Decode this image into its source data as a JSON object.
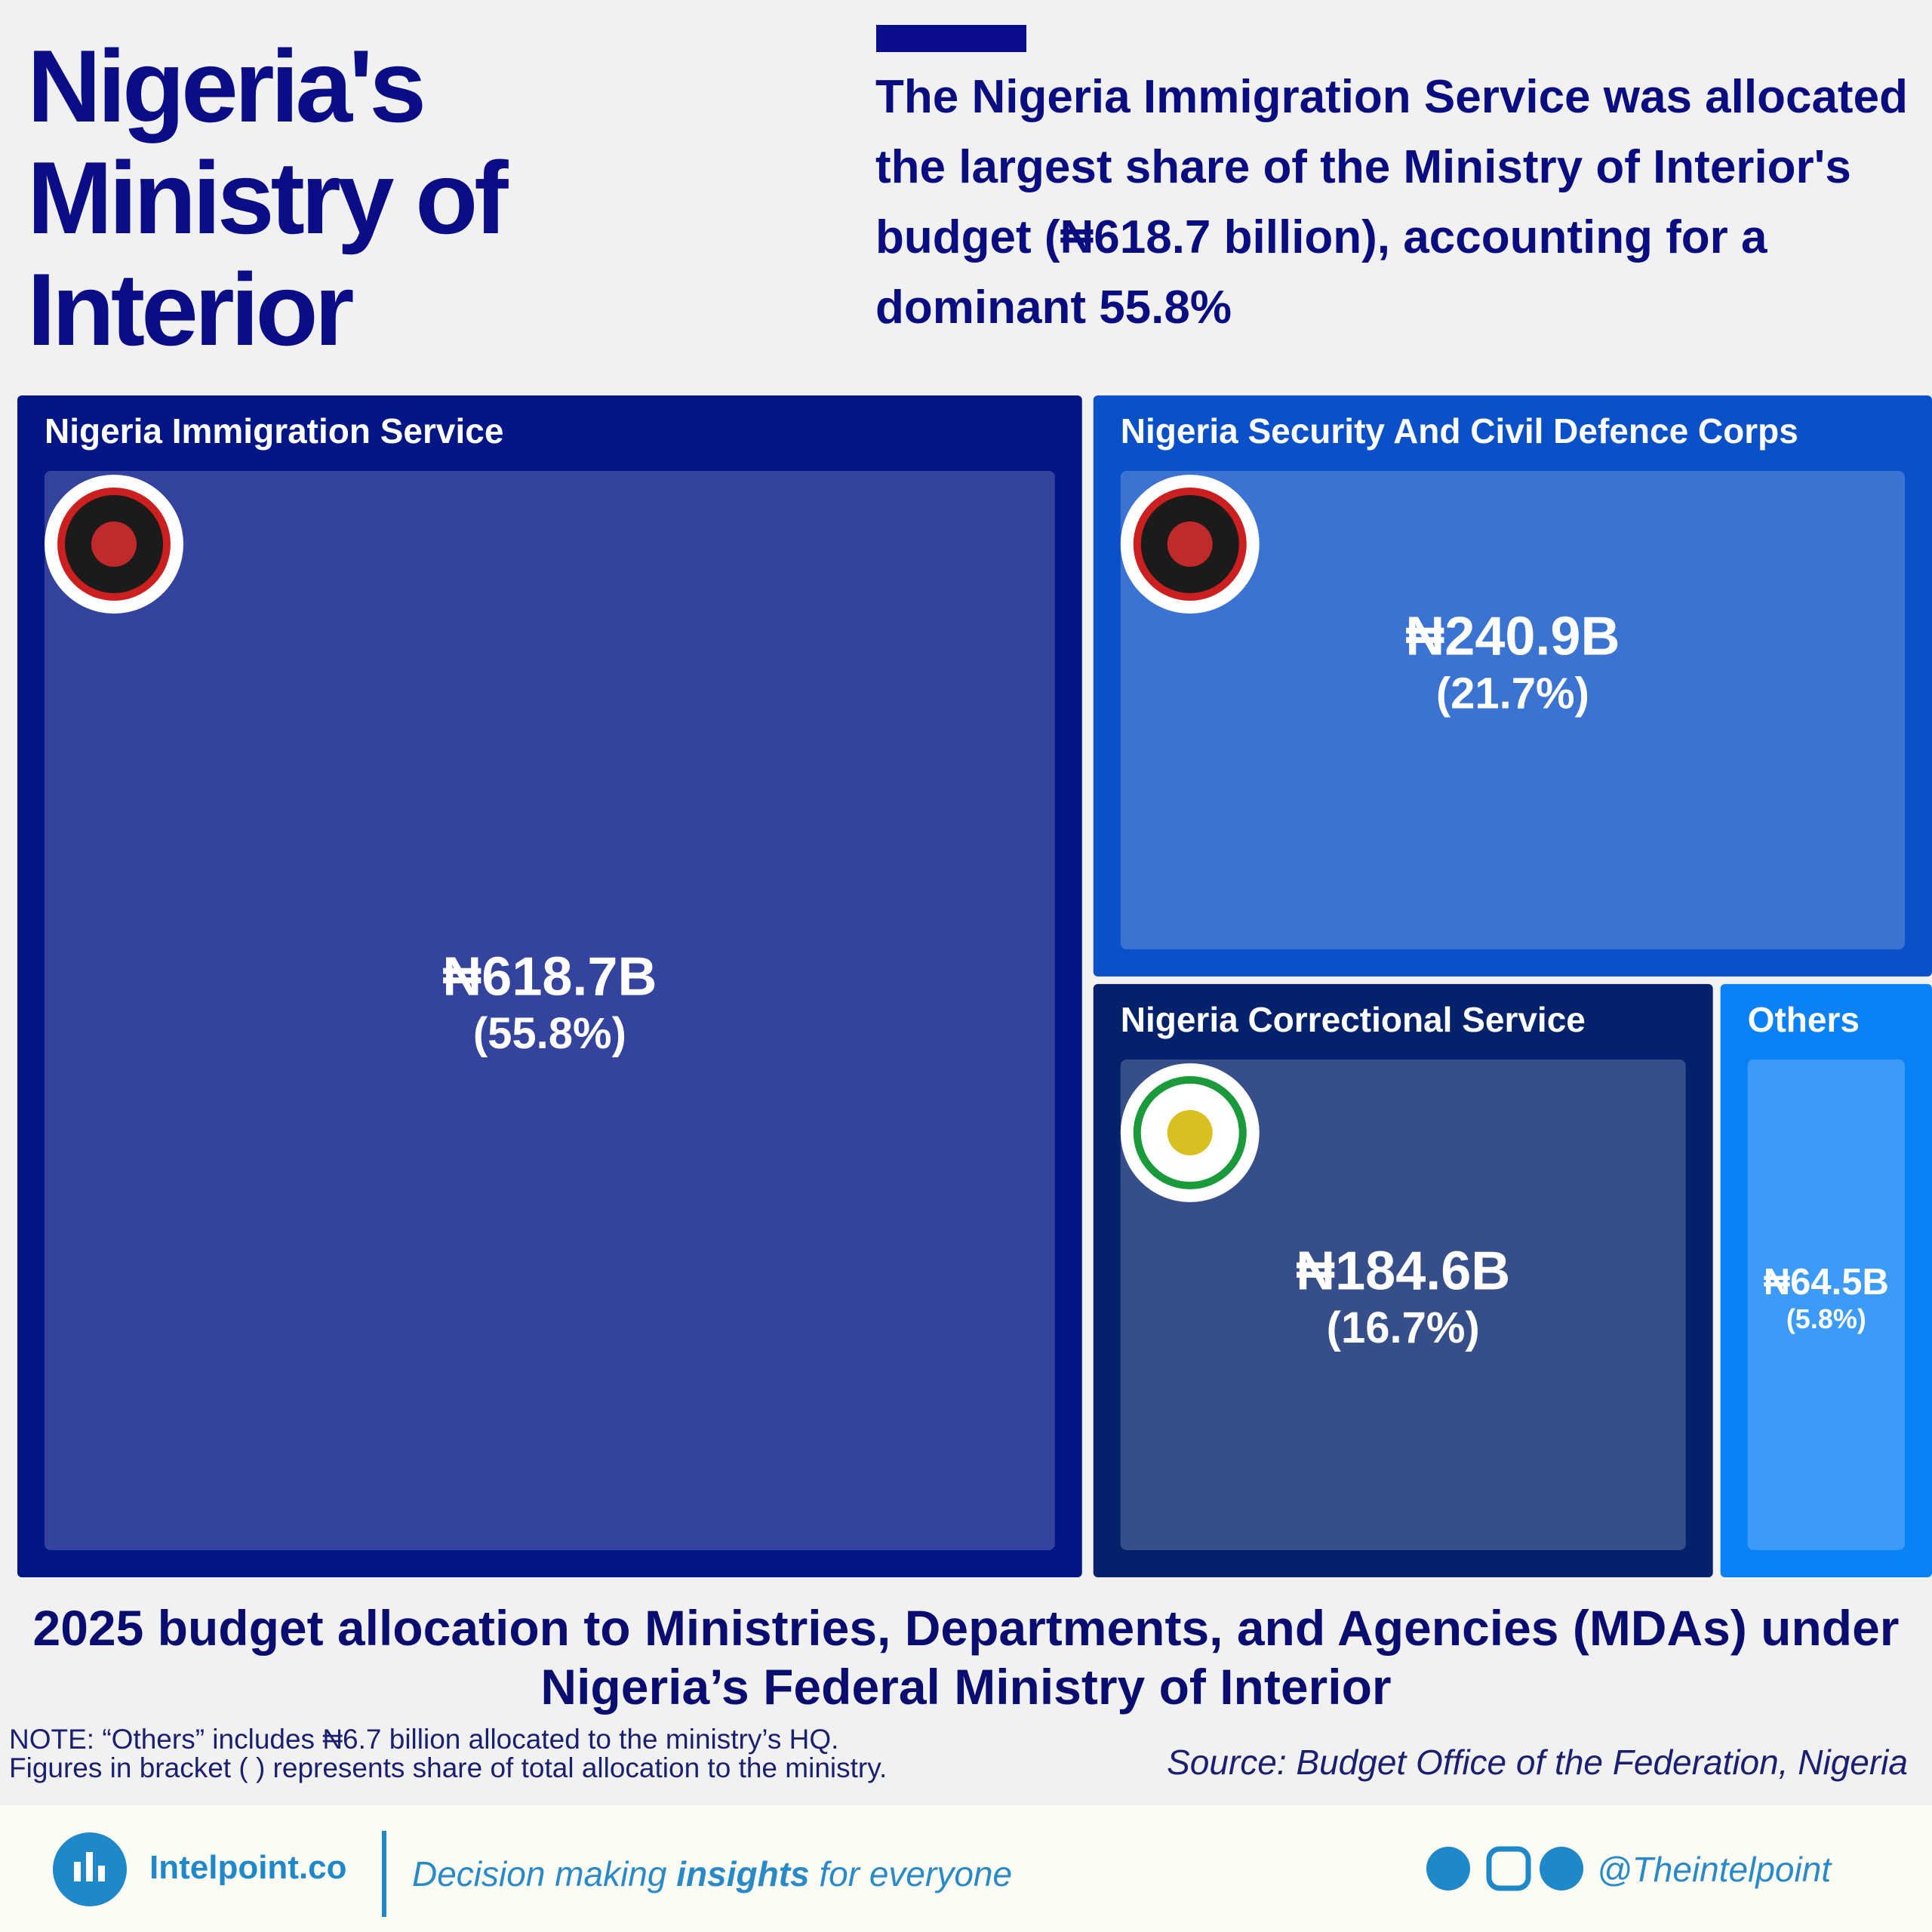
{
  "chart_data": {
    "type": "treemap",
    "title": "Nigeria's Ministry of Interior",
    "subtitle": "The Nigeria Immigration Service was allocated the largest share of the Ministry of Interior's budget (₦618.7 billion), accounting for a dominant 55.8%",
    "caption": "2025 budget allocation to Ministries, Departments, and Agencies (MDAs) under Nigeria’s Federal Ministry of Interior",
    "notes": [
      "NOTE: “Others” includes ₦6.7 billion allocated to the ministry’s HQ.",
      "Figures in bracket ( ) represents share of total allocation to the ministry."
    ],
    "source": "Source: Budget Office of the Federation, Nigeria",
    "categories": [
      "Nigeria Immigration Service",
      "Nigeria Security And Civil Defence Corps",
      "Nigeria Correctional Service",
      "Others"
    ],
    "values": [
      618.7,
      240.9,
      184.6,
      64.5
    ],
    "value_labels": [
      "₦618.7B",
      "₦240.9B",
      "₦184.6B",
      "₦64.5B"
    ],
    "shares": [
      55.8,
      21.7,
      16.7,
      5.8
    ],
    "share_labels": [
      "(55.8%)",
      "(21.7%)",
      "(16.7%)",
      "(5.8%)"
    ],
    "colors": [
      "#021686",
      "#0a50c8",
      "#04226c",
      "#0a82f6"
    ]
  },
  "footer": {
    "brand": "Intelpoint.co",
    "tagline": [
      "Decision making ",
      "insights",
      " for everyone"
    ],
    "handle": "@Theintelpoint"
  }
}
